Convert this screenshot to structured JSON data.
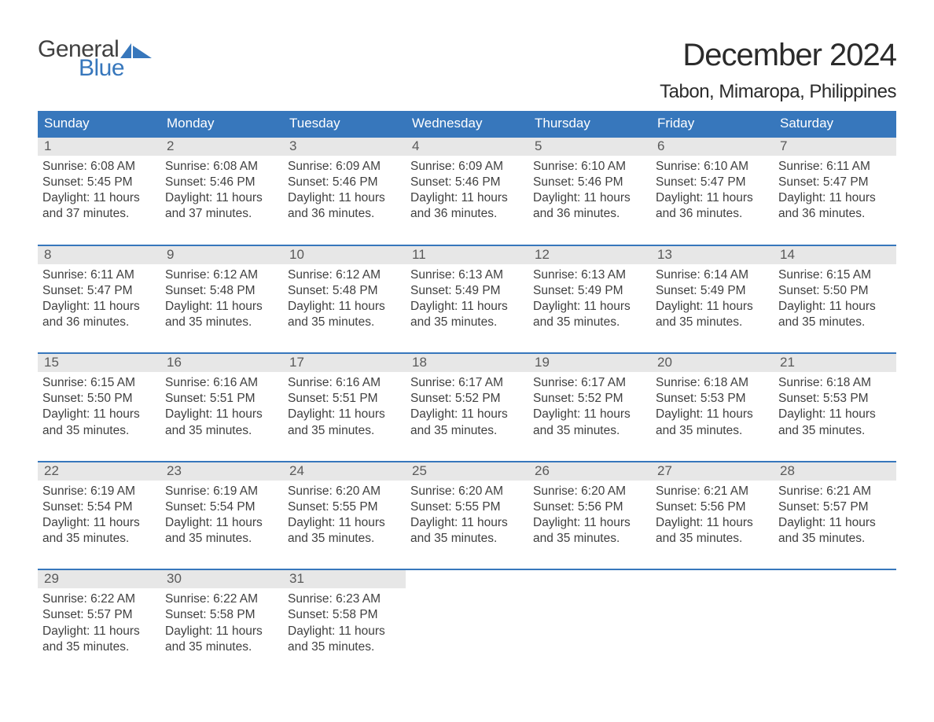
{
  "colors": {
    "brand_blue": "#3777bc",
    "header_bg": "#3777bc",
    "daynum_bg": "#e7e7e7",
    "text_dark": "#2b2b2b",
    "text_body": "#404040",
    "white": "#ffffff"
  },
  "typography": {
    "title_fontsize": 40,
    "location_fontsize": 24,
    "dow_fontsize": 17,
    "daynum_fontsize": 17,
    "body_fontsize": 15.5
  },
  "logo": {
    "top": "General",
    "bottom": "Blue"
  },
  "title": "December 2024",
  "location": "Tabon, Mimaropa, Philippines",
  "days_of_week": [
    "Sunday",
    "Monday",
    "Tuesday",
    "Wednesday",
    "Thursday",
    "Friday",
    "Saturday"
  ],
  "weeks": [
    [
      {
        "n": "1",
        "sunrise": "Sunrise: 6:08 AM",
        "sunset": "Sunset: 5:45 PM",
        "d1": "Daylight: 11 hours",
        "d2": "and 37 minutes."
      },
      {
        "n": "2",
        "sunrise": "Sunrise: 6:08 AM",
        "sunset": "Sunset: 5:46 PM",
        "d1": "Daylight: 11 hours",
        "d2": "and 37 minutes."
      },
      {
        "n": "3",
        "sunrise": "Sunrise: 6:09 AM",
        "sunset": "Sunset: 5:46 PM",
        "d1": "Daylight: 11 hours",
        "d2": "and 36 minutes."
      },
      {
        "n": "4",
        "sunrise": "Sunrise: 6:09 AM",
        "sunset": "Sunset: 5:46 PM",
        "d1": "Daylight: 11 hours",
        "d2": "and 36 minutes."
      },
      {
        "n": "5",
        "sunrise": "Sunrise: 6:10 AM",
        "sunset": "Sunset: 5:46 PM",
        "d1": "Daylight: 11 hours",
        "d2": "and 36 minutes."
      },
      {
        "n": "6",
        "sunrise": "Sunrise: 6:10 AM",
        "sunset": "Sunset: 5:47 PM",
        "d1": "Daylight: 11 hours",
        "d2": "and 36 minutes."
      },
      {
        "n": "7",
        "sunrise": "Sunrise: 6:11 AM",
        "sunset": "Sunset: 5:47 PM",
        "d1": "Daylight: 11 hours",
        "d2": "and 36 minutes."
      }
    ],
    [
      {
        "n": "8",
        "sunrise": "Sunrise: 6:11 AM",
        "sunset": "Sunset: 5:47 PM",
        "d1": "Daylight: 11 hours",
        "d2": "and 36 minutes."
      },
      {
        "n": "9",
        "sunrise": "Sunrise: 6:12 AM",
        "sunset": "Sunset: 5:48 PM",
        "d1": "Daylight: 11 hours",
        "d2": "and 35 minutes."
      },
      {
        "n": "10",
        "sunrise": "Sunrise: 6:12 AM",
        "sunset": "Sunset: 5:48 PM",
        "d1": "Daylight: 11 hours",
        "d2": "and 35 minutes."
      },
      {
        "n": "11",
        "sunrise": "Sunrise: 6:13 AM",
        "sunset": "Sunset: 5:49 PM",
        "d1": "Daylight: 11 hours",
        "d2": "and 35 minutes."
      },
      {
        "n": "12",
        "sunrise": "Sunrise: 6:13 AM",
        "sunset": "Sunset: 5:49 PM",
        "d1": "Daylight: 11 hours",
        "d2": "and 35 minutes."
      },
      {
        "n": "13",
        "sunrise": "Sunrise: 6:14 AM",
        "sunset": "Sunset: 5:49 PM",
        "d1": "Daylight: 11 hours",
        "d2": "and 35 minutes."
      },
      {
        "n": "14",
        "sunrise": "Sunrise: 6:15 AM",
        "sunset": "Sunset: 5:50 PM",
        "d1": "Daylight: 11 hours",
        "d2": "and 35 minutes."
      }
    ],
    [
      {
        "n": "15",
        "sunrise": "Sunrise: 6:15 AM",
        "sunset": "Sunset: 5:50 PM",
        "d1": "Daylight: 11 hours",
        "d2": "and 35 minutes."
      },
      {
        "n": "16",
        "sunrise": "Sunrise: 6:16 AM",
        "sunset": "Sunset: 5:51 PM",
        "d1": "Daylight: 11 hours",
        "d2": "and 35 minutes."
      },
      {
        "n": "17",
        "sunrise": "Sunrise: 6:16 AM",
        "sunset": "Sunset: 5:51 PM",
        "d1": "Daylight: 11 hours",
        "d2": "and 35 minutes."
      },
      {
        "n": "18",
        "sunrise": "Sunrise: 6:17 AM",
        "sunset": "Sunset: 5:52 PM",
        "d1": "Daylight: 11 hours",
        "d2": "and 35 minutes."
      },
      {
        "n": "19",
        "sunrise": "Sunrise: 6:17 AM",
        "sunset": "Sunset: 5:52 PM",
        "d1": "Daylight: 11 hours",
        "d2": "and 35 minutes."
      },
      {
        "n": "20",
        "sunrise": "Sunrise: 6:18 AM",
        "sunset": "Sunset: 5:53 PM",
        "d1": "Daylight: 11 hours",
        "d2": "and 35 minutes."
      },
      {
        "n": "21",
        "sunrise": "Sunrise: 6:18 AM",
        "sunset": "Sunset: 5:53 PM",
        "d1": "Daylight: 11 hours",
        "d2": "and 35 minutes."
      }
    ],
    [
      {
        "n": "22",
        "sunrise": "Sunrise: 6:19 AM",
        "sunset": "Sunset: 5:54 PM",
        "d1": "Daylight: 11 hours",
        "d2": "and 35 minutes."
      },
      {
        "n": "23",
        "sunrise": "Sunrise: 6:19 AM",
        "sunset": "Sunset: 5:54 PM",
        "d1": "Daylight: 11 hours",
        "d2": "and 35 minutes."
      },
      {
        "n": "24",
        "sunrise": "Sunrise: 6:20 AM",
        "sunset": "Sunset: 5:55 PM",
        "d1": "Daylight: 11 hours",
        "d2": "and 35 minutes."
      },
      {
        "n": "25",
        "sunrise": "Sunrise: 6:20 AM",
        "sunset": "Sunset: 5:55 PM",
        "d1": "Daylight: 11 hours",
        "d2": "and 35 minutes."
      },
      {
        "n": "26",
        "sunrise": "Sunrise: 6:20 AM",
        "sunset": "Sunset: 5:56 PM",
        "d1": "Daylight: 11 hours",
        "d2": "and 35 minutes."
      },
      {
        "n": "27",
        "sunrise": "Sunrise: 6:21 AM",
        "sunset": "Sunset: 5:56 PM",
        "d1": "Daylight: 11 hours",
        "d2": "and 35 minutes."
      },
      {
        "n": "28",
        "sunrise": "Sunrise: 6:21 AM",
        "sunset": "Sunset: 5:57 PM",
        "d1": "Daylight: 11 hours",
        "d2": "and 35 minutes."
      }
    ],
    [
      {
        "n": "29",
        "sunrise": "Sunrise: 6:22 AM",
        "sunset": "Sunset: 5:57 PM",
        "d1": "Daylight: 11 hours",
        "d2": "and 35 minutes."
      },
      {
        "n": "30",
        "sunrise": "Sunrise: 6:22 AM",
        "sunset": "Sunset: 5:58 PM",
        "d1": "Daylight: 11 hours",
        "d2": "and 35 minutes."
      },
      {
        "n": "31",
        "sunrise": "Sunrise: 6:23 AM",
        "sunset": "Sunset: 5:58 PM",
        "d1": "Daylight: 11 hours",
        "d2": "and 35 minutes."
      },
      {
        "n": "",
        "sunrise": "",
        "sunset": "",
        "d1": "",
        "d2": ""
      },
      {
        "n": "",
        "sunrise": "",
        "sunset": "",
        "d1": "",
        "d2": ""
      },
      {
        "n": "",
        "sunrise": "",
        "sunset": "",
        "d1": "",
        "d2": ""
      },
      {
        "n": "",
        "sunrise": "",
        "sunset": "",
        "d1": "",
        "d2": ""
      }
    ]
  ]
}
